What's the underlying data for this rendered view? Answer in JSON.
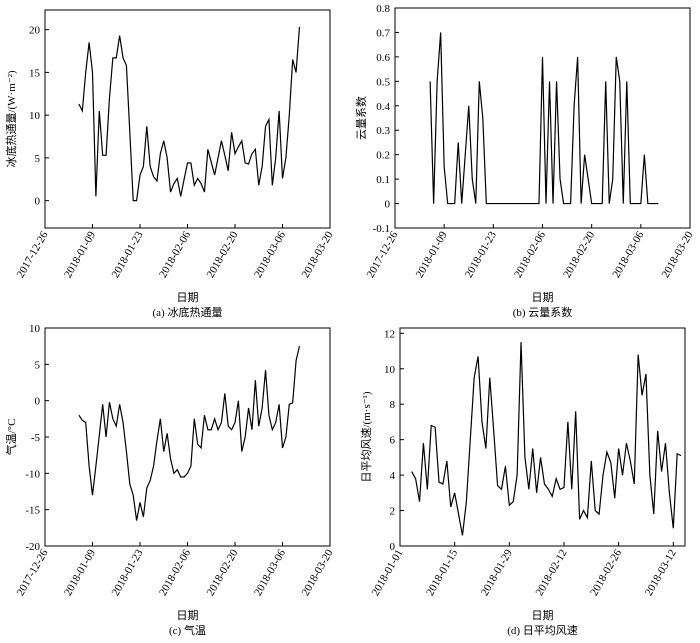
{
  "chart_data": [
    {
      "type": "line",
      "caption": "(a) 冰底热通量",
      "xlabel": "日期",
      "ylabel": "冰底热通量/(W·m⁻²)",
      "color": "#000000",
      "xlim": [
        "2017-12-26",
        "2018-03-20"
      ],
      "xticks": [
        "2017-12-26",
        "2018-01-09",
        "2018-01-23",
        "2018-02-06",
        "2018-02-20",
        "2018-03-06",
        "2018-03-20"
      ],
      "ylim": [
        -3.2,
        22.3
      ],
      "yticks": [
        0,
        5,
        10,
        15,
        20
      ],
      "x": [
        "2018-01-05",
        "2018-01-06",
        "2018-01-07",
        "2018-01-08",
        "2018-01-09",
        "2018-01-10",
        "2018-01-11",
        "2018-01-12",
        "2018-01-13",
        "2018-01-14",
        "2018-01-15",
        "2018-01-16",
        "2018-01-17",
        "2018-01-18",
        "2018-01-19",
        "2018-01-20",
        "2018-01-21",
        "2018-01-22",
        "2018-01-23",
        "2018-01-24",
        "2018-01-25",
        "2018-01-26",
        "2018-01-27",
        "2018-01-28",
        "2018-01-29",
        "2018-01-30",
        "2018-01-31",
        "2018-02-01",
        "2018-02-02",
        "2018-02-03",
        "2018-02-04",
        "2018-02-05",
        "2018-02-06",
        "2018-02-07",
        "2018-02-08",
        "2018-02-09",
        "2018-02-10",
        "2018-02-11",
        "2018-02-12",
        "2018-02-13",
        "2018-02-14",
        "2018-02-15",
        "2018-02-16",
        "2018-02-17",
        "2018-02-18",
        "2018-02-19",
        "2018-02-20",
        "2018-02-21",
        "2018-02-22",
        "2018-02-23",
        "2018-02-24",
        "2018-02-25",
        "2018-02-26",
        "2018-02-27",
        "2018-02-28",
        "2018-03-01",
        "2018-03-02",
        "2018-03-03",
        "2018-03-04",
        "2018-03-05",
        "2018-03-06",
        "2018-03-07",
        "2018-03-08",
        "2018-03-09",
        "2018-03-10",
        "2018-03-11"
      ],
      "values": [
        11.3,
        10.5,
        15,
        18.5,
        15,
        0.5,
        10.5,
        5.3,
        5.3,
        12,
        16.7,
        16.7,
        19.3,
        16.7,
        15.8,
        8,
        0,
        0,
        3,
        4,
        8.7,
        4,
        2.8,
        2.3,
        5.5,
        7,
        5,
        1,
        2,
        2.6,
        0.5,
        2.5,
        4.4,
        4.4,
        1.8,
        2.6,
        2,
        1,
        6,
        4.5,
        3,
        5,
        7,
        5.3,
        3.5,
        8,
        5.5,
        6.3,
        7,
        4.4,
        4.3,
        5.5,
        6,
        1.8,
        4,
        8.7,
        9.5,
        1.8,
        5,
        10.5,
        2.6,
        5,
        10,
        16.5,
        15,
        20.3
      ]
    },
    {
      "type": "line",
      "caption": "(b) 云量系数",
      "xlabel": "日期",
      "ylabel": "云量系数",
      "color": "#000000",
      "xlim": [
        "2017-12-26",
        "2018-03-20"
      ],
      "xticks": [
        "2017-12-26",
        "2018-01-09",
        "2018-01-23",
        "2018-02-06",
        "2018-02-20",
        "2018-03-06",
        "2018-03-20"
      ],
      "ylim": [
        -0.1,
        0.8
      ],
      "yticks": [
        -0.1,
        0,
        0.1,
        0.2,
        0.3,
        0.4,
        0.5,
        0.6,
        0.7,
        0.8
      ],
      "x": [
        "2018-01-05",
        "2018-01-06",
        "2018-01-07",
        "2018-01-08",
        "2018-01-09",
        "2018-01-10",
        "2018-01-11",
        "2018-01-12",
        "2018-01-13",
        "2018-01-14",
        "2018-01-15",
        "2018-01-16",
        "2018-01-17",
        "2018-01-18",
        "2018-01-19",
        "2018-01-20",
        "2018-01-21",
        "2018-01-22",
        "2018-01-23",
        "2018-01-24",
        "2018-01-25",
        "2018-01-26",
        "2018-01-27",
        "2018-01-28",
        "2018-01-29",
        "2018-01-30",
        "2018-01-31",
        "2018-02-01",
        "2018-02-02",
        "2018-02-03",
        "2018-02-04",
        "2018-02-05",
        "2018-02-06",
        "2018-02-07",
        "2018-02-08",
        "2018-02-09",
        "2018-02-10",
        "2018-02-11",
        "2018-02-12",
        "2018-02-13",
        "2018-02-14",
        "2018-02-15",
        "2018-02-16",
        "2018-02-17",
        "2018-02-18",
        "2018-02-19",
        "2018-02-20",
        "2018-02-21",
        "2018-02-22",
        "2018-02-23",
        "2018-02-24",
        "2018-02-25",
        "2018-02-26",
        "2018-02-27",
        "2018-02-28",
        "2018-03-01",
        "2018-03-02",
        "2018-03-03",
        "2018-03-04",
        "2018-03-05",
        "2018-03-06",
        "2018-03-07",
        "2018-03-08",
        "2018-03-09",
        "2018-03-10",
        "2018-03-11"
      ],
      "values": [
        0.5,
        0,
        0.5,
        0.7,
        0.15,
        0,
        0,
        0,
        0.25,
        0,
        0.2,
        0.4,
        0.1,
        0,
        0.5,
        0.35,
        0,
        0,
        0,
        0,
        0,
        0,
        0,
        0,
        0,
        0,
        0,
        0,
        0,
        0,
        0,
        0,
        0.6,
        0,
        0.5,
        0,
        0.5,
        0.1,
        0,
        0,
        0,
        0.4,
        0.6,
        0,
        0.2,
        0.1,
        0,
        0,
        0,
        0,
        0.5,
        0,
        0.1,
        0.6,
        0.5,
        0,
        0.5,
        0,
        0,
        0,
        0,
        0.2,
        0,
        0,
        0,
        0
      ]
    },
    {
      "type": "line",
      "caption": "(c) 气温",
      "xlabel": "日期",
      "ylabel": "气温/°C",
      "color": "#000000",
      "xlim": [
        "2017-12-26",
        "2018-03-20"
      ],
      "xticks": [
        "2017-12-26",
        "2018-01-09",
        "2018-01-23",
        "2018-02-06",
        "2018-02-20",
        "2018-03-06",
        "2018-03-20"
      ],
      "ylim": [
        -20,
        10
      ],
      "yticks": [
        -20,
        -15,
        -10,
        -5,
        0,
        5,
        10
      ],
      "x": [
        "2018-01-05",
        "2018-01-06",
        "2018-01-07",
        "2018-01-08",
        "2018-01-09",
        "2018-01-10",
        "2018-01-11",
        "2018-01-12",
        "2018-01-13",
        "2018-01-14",
        "2018-01-15",
        "2018-01-16",
        "2018-01-17",
        "2018-01-18",
        "2018-01-19",
        "2018-01-20",
        "2018-01-21",
        "2018-01-22",
        "2018-01-23",
        "2018-01-24",
        "2018-01-25",
        "2018-01-26",
        "2018-01-27",
        "2018-01-28",
        "2018-01-29",
        "2018-01-30",
        "2018-01-31",
        "2018-02-01",
        "2018-02-02",
        "2018-02-03",
        "2018-02-04",
        "2018-02-05",
        "2018-02-06",
        "2018-02-07",
        "2018-02-08",
        "2018-02-09",
        "2018-02-10",
        "2018-02-11",
        "2018-02-12",
        "2018-02-13",
        "2018-02-14",
        "2018-02-15",
        "2018-02-16",
        "2018-02-17",
        "2018-02-18",
        "2018-02-19",
        "2018-02-20",
        "2018-02-21",
        "2018-02-22",
        "2018-02-23",
        "2018-02-24",
        "2018-02-25",
        "2018-02-26",
        "2018-02-27",
        "2018-02-28",
        "2018-03-01",
        "2018-03-02",
        "2018-03-03",
        "2018-03-04",
        "2018-03-05",
        "2018-03-06",
        "2018-03-07",
        "2018-03-08",
        "2018-03-09",
        "2018-03-10",
        "2018-03-11"
      ],
      "values": [
        -2,
        -2.7,
        -3,
        -9,
        -13,
        -9,
        -4.8,
        -0.5,
        -5,
        -0.2,
        -2.5,
        -3.5,
        -0.5,
        -3,
        -7,
        -11.5,
        -13,
        -16.5,
        -14,
        -16,
        -12,
        -11,
        -9,
        -5.5,
        -2.5,
        -7,
        -4.5,
        -8,
        -10,
        -9.5,
        -10.5,
        -10.5,
        -10,
        -9,
        -2.5,
        -6,
        -6.5,
        -2,
        -4,
        -4,
        -2.5,
        -4,
        -3,
        1,
        -3.5,
        -4,
        -3,
        0,
        -7,
        -5,
        -1,
        -4,
        2.8,
        -3.5,
        -1,
        4.2,
        -2,
        -4,
        -3,
        -0.5,
        -6.5,
        -5,
        -0.5,
        -0.3,
        5.5,
        7.5
      ]
    },
    {
      "type": "line",
      "caption": "(d) 日平均风速",
      "xlabel": "日期",
      "ylabel": "日平均风速/(m·s⁻¹)",
      "color": "#000000",
      "xlim": [
        "2018-01-01",
        "2018-03-15"
      ],
      "xticks": [
        "2018-01-01",
        "2018-01-15",
        "2018-01-29",
        "2018-02-12",
        "2018-02-26",
        "2018-03-12"
      ],
      "ylim": [
        0,
        12.3
      ],
      "yticks": [
        0,
        2,
        4,
        6,
        8,
        10,
        12
      ],
      "x": [
        "2018-01-04",
        "2018-01-05",
        "2018-01-06",
        "2018-01-07",
        "2018-01-08",
        "2018-01-09",
        "2018-01-10",
        "2018-01-11",
        "2018-01-12",
        "2018-01-13",
        "2018-01-14",
        "2018-01-15",
        "2018-01-16",
        "2018-01-17",
        "2018-01-18",
        "2018-01-19",
        "2018-01-20",
        "2018-01-21",
        "2018-01-22",
        "2018-01-23",
        "2018-01-24",
        "2018-01-25",
        "2018-01-26",
        "2018-01-27",
        "2018-01-28",
        "2018-01-29",
        "2018-01-30",
        "2018-01-31",
        "2018-02-01",
        "2018-02-02",
        "2018-02-03",
        "2018-02-04",
        "2018-02-05",
        "2018-02-06",
        "2018-02-07",
        "2018-02-08",
        "2018-02-09",
        "2018-02-10",
        "2018-02-11",
        "2018-02-12",
        "2018-02-13",
        "2018-02-14",
        "2018-02-15",
        "2018-02-16",
        "2018-02-17",
        "2018-02-18",
        "2018-02-19",
        "2018-02-20",
        "2018-02-21",
        "2018-02-22",
        "2018-02-23",
        "2018-02-24",
        "2018-02-25",
        "2018-02-26",
        "2018-02-27",
        "2018-02-28",
        "2018-03-01",
        "2018-03-02",
        "2018-03-03",
        "2018-03-04",
        "2018-03-05",
        "2018-03-06",
        "2018-03-07",
        "2018-03-08",
        "2018-03-09",
        "2018-03-10",
        "2018-03-11",
        "2018-03-12",
        "2018-03-13",
        "2018-03-14"
      ],
      "values": [
        4.2,
        3.8,
        2.5,
        5.8,
        3.2,
        6.8,
        6.7,
        3.6,
        3.5,
        4.8,
        2.2,
        3,
        1.8,
        0.6,
        2.5,
        6,
        9.5,
        10.7,
        7,
        5.5,
        9.5,
        6.5,
        3.4,
        3.2,
        4.5,
        2.3,
        2.5,
        4,
        11.5,
        5,
        3.2,
        5.5,
        3,
        5,
        3.5,
        3.2,
        2.8,
        3.8,
        3.2,
        3.3,
        7,
        3.2,
        7.6,
        1.5,
        2,
        1.6,
        4.8,
        2,
        1.8,
        4,
        5.3,
        4.7,
        2.7,
        5.5,
        4,
        5.8,
        4.8,
        3.5,
        10.8,
        8.5,
        9.7,
        4,
        1.8,
        6.5,
        4.2,
        5.8,
        3,
        1,
        5.2,
        5.1
      ]
    }
  ]
}
